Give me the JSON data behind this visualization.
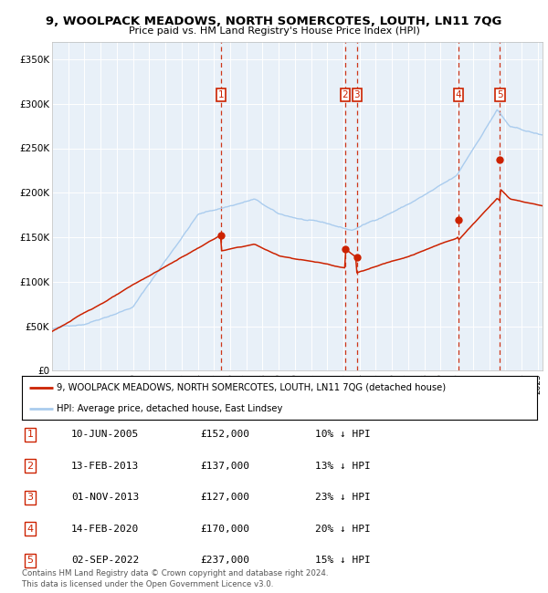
{
  "title": "9, WOOLPACK MEADOWS, NORTH SOMERCOTES, LOUTH, LN11 7QG",
  "subtitle": "Price paid vs. HM Land Registry's House Price Index (HPI)",
  "xlim_start": 1995.0,
  "xlim_end": 2025.3,
  "ylim": [
    0,
    370000
  ],
  "yticks": [
    0,
    50000,
    100000,
    150000,
    200000,
    250000,
    300000,
    350000
  ],
  "ytick_labels": [
    "£0",
    "£50K",
    "£100K",
    "£150K",
    "£200K",
    "£250K",
    "£300K",
    "£350K"
  ],
  "hpi_color": "#aaccee",
  "price_color": "#cc2200",
  "vline_color": "#cc2200",
  "plot_bg_color": "#e8f0f8",
  "sales": [
    {
      "num": 1,
      "date_x": 2005.44,
      "price": 152000
    },
    {
      "num": 2,
      "date_x": 2013.11,
      "price": 137000
    },
    {
      "num": 3,
      "date_x": 2013.83,
      "price": 127000
    },
    {
      "num": 4,
      "date_x": 2020.12,
      "price": 170000
    },
    {
      "num": 5,
      "date_x": 2022.67,
      "price": 237000
    }
  ],
  "legend_property_label": "9, WOOLPACK MEADOWS, NORTH SOMERCOTES, LOUTH, LN11 7QG (detached house)",
  "legend_hpi_label": "HPI: Average price, detached house, East Lindsey",
  "footer": "Contains HM Land Registry data © Crown copyright and database right 2024.\nThis data is licensed under the Open Government Licence v3.0.",
  "table_rows": [
    [
      "1",
      "10-JUN-2005",
      "£152,000",
      "10% ↓ HPI"
    ],
    [
      "2",
      "13-FEB-2013",
      "£137,000",
      "13% ↓ HPI"
    ],
    [
      "3",
      "01-NOV-2013",
      "£127,000",
      "23% ↓ HPI"
    ],
    [
      "4",
      "14-FEB-2020",
      "£170,000",
      "20% ↓ HPI"
    ],
    [
      "5",
      "02-SEP-2022",
      "£237,000",
      "15% ↓ HPI"
    ]
  ]
}
